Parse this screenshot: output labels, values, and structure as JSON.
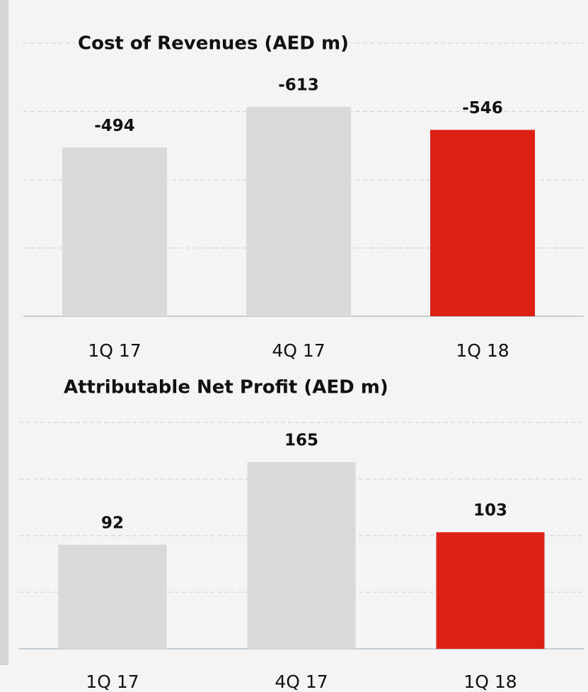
{
  "chart_data": [
    {
      "type": "bar",
      "title": "Cost of Revenues (AED m)",
      "categories": [
        "1Q 17",
        "4Q 17",
        "1Q 18"
      ],
      "values": [
        -494,
        -613,
        -546
      ],
      "colors": [
        "#d9d9d9",
        "#d9d9d9",
        "#dc2016"
      ],
      "ylim": [
        0,
        -800
      ],
      "yticks": [
        0,
        -200,
        -400,
        -600,
        -800
      ],
      "grid": true
    },
    {
      "type": "bar",
      "title": "Attributable Net Profit (AED m)",
      "categories": [
        "1Q 17",
        "4Q 17",
        "1Q 18"
      ],
      "values": [
        92,
        165,
        103
      ],
      "colors": [
        "#d9d9d9",
        "#d9d9d9",
        "#dc2016"
      ],
      "ylim": [
        0,
        200
      ],
      "yticks": [
        0,
        50,
        100,
        150,
        200
      ],
      "grid": true
    }
  ]
}
